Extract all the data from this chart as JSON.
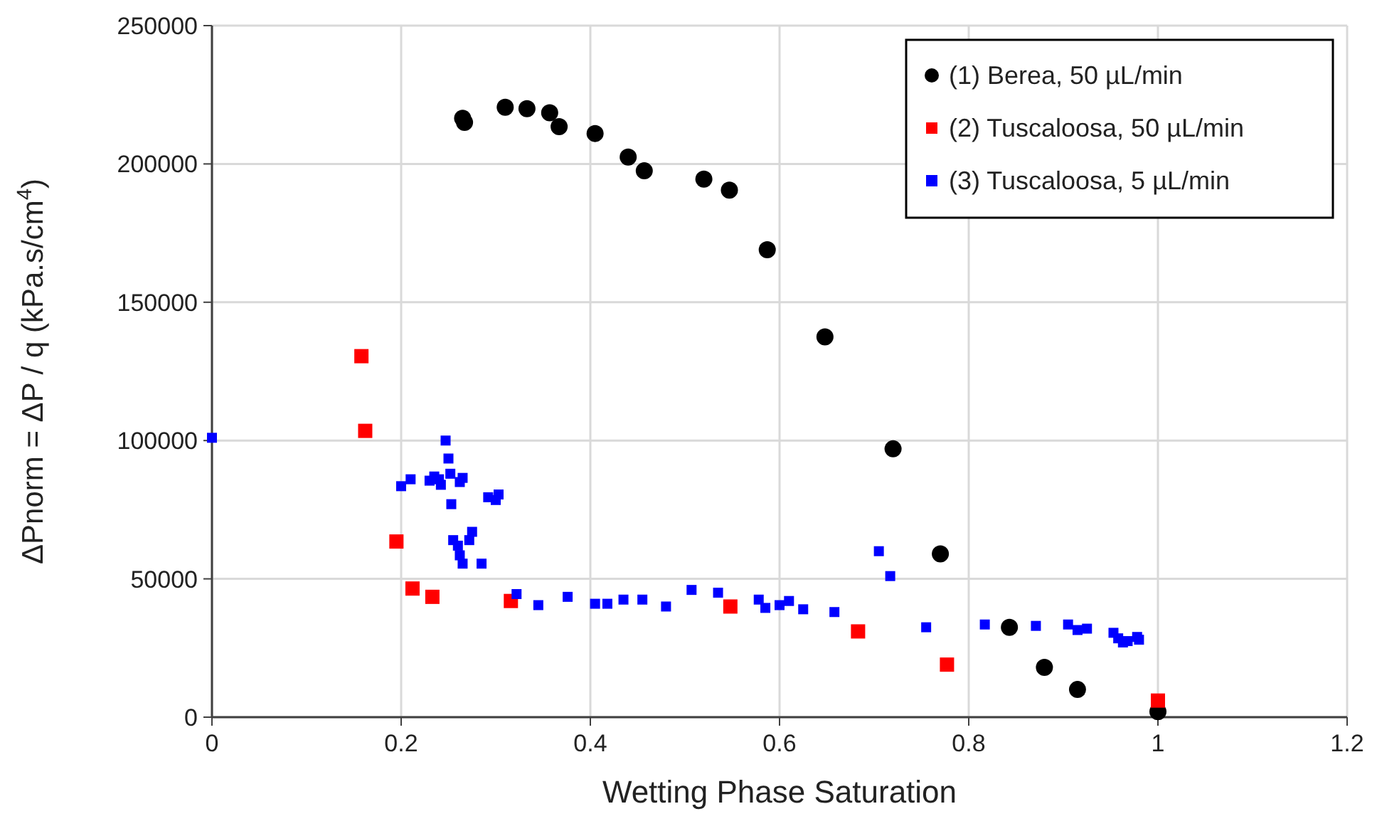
{
  "chart_data": {
    "type": "scatter",
    "xlabel": "Wetting Phase Saturation",
    "ylabel": "ΔPnorm = ΔP / q (kPa.s/cm$^{4}$)",
    "xlim": [
      0,
      1.2
    ],
    "xticks": [
      0,
      0.2,
      0.4,
      0.6,
      0.8,
      1,
      1.2
    ],
    "ylim": [
      0,
      250000
    ],
    "yticks": [
      0,
      50000,
      100000,
      150000,
      200000,
      250000
    ],
    "grid": true,
    "legend": "top right",
    "series": [
      {
        "name": "(1) Berea, 50 µL/min",
        "color": "#000000",
        "marker": "circle",
        "x": [
          0.265,
          0.267,
          0.31,
          0.333,
          0.357,
          0.367,
          0.405,
          0.44,
          0.457,
          0.52,
          0.547,
          0.587,
          0.648,
          0.72,
          0.77,
          0.843,
          0.88,
          0.915,
          1.0
        ],
        "values": [
          216500,
          215000,
          220500,
          220000,
          218500,
          213500,
          211000,
          202500,
          197500,
          194500,
          190500,
          169000,
          137500,
          97000,
          59000,
          32500,
          18000,
          10000,
          2000
        ]
      },
      {
        "name": "(2) Tuscaloosa, 50 µL/min",
        "color": "#ff0000",
        "marker": "square",
        "x": [
          0.158,
          0.162,
          0.195,
          0.212,
          0.233,
          0.316,
          0.548,
          0.683,
          0.777,
          1.0
        ],
        "values": [
          130500,
          103500,
          63500,
          46500,
          43500,
          42000,
          40000,
          31000,
          19000,
          6000
        ]
      },
      {
        "name": "(3) Tuscaloosa, 5 µL/min",
        "color": "#0000ff",
        "marker": "square",
        "x": [
          0,
          0.2,
          0.21,
          0.23,
          0.235,
          0.24,
          0.242,
          0.247,
          0.25,
          0.252,
          0.253,
          0.255,
          0.26,
          0.262,
          0.265,
          0.262,
          0.265,
          0.272,
          0.275,
          0.285,
          0.292,
          0.3,
          0.303,
          0.322,
          0.345,
          0.376,
          0.405,
          0.418,
          0.435,
          0.455,
          0.48,
          0.507,
          0.535,
          0.578,
          0.585,
          0.6,
          0.61,
          0.625,
          0.658,
          0.705,
          0.717,
          0.755,
          0.817,
          0.871,
          0.905,
          0.915,
          0.925,
          0.953,
          0.958,
          0.963,
          0.968,
          0.978,
          0.98
        ],
        "values": [
          101000,
          83500,
          86000,
          85500,
          87000,
          86000,
          84000,
          100000,
          93500,
          88000,
          77000,
          64000,
          62000,
          58500,
          55500,
          85000,
          86500,
          64000,
          67000,
          55500,
          79500,
          78500,
          80500,
          44500,
          40500,
          43500,
          41000,
          41000,
          42500,
          42500,
          40000,
          46000,
          45000,
          42500,
          39500,
          40500,
          42000,
          39000,
          38000,
          60000,
          51000,
          32500,
          33500,
          33000,
          33500,
          31500,
          32000,
          30500,
          28500,
          27000,
          27500,
          29000,
          28000
        ]
      }
    ]
  }
}
